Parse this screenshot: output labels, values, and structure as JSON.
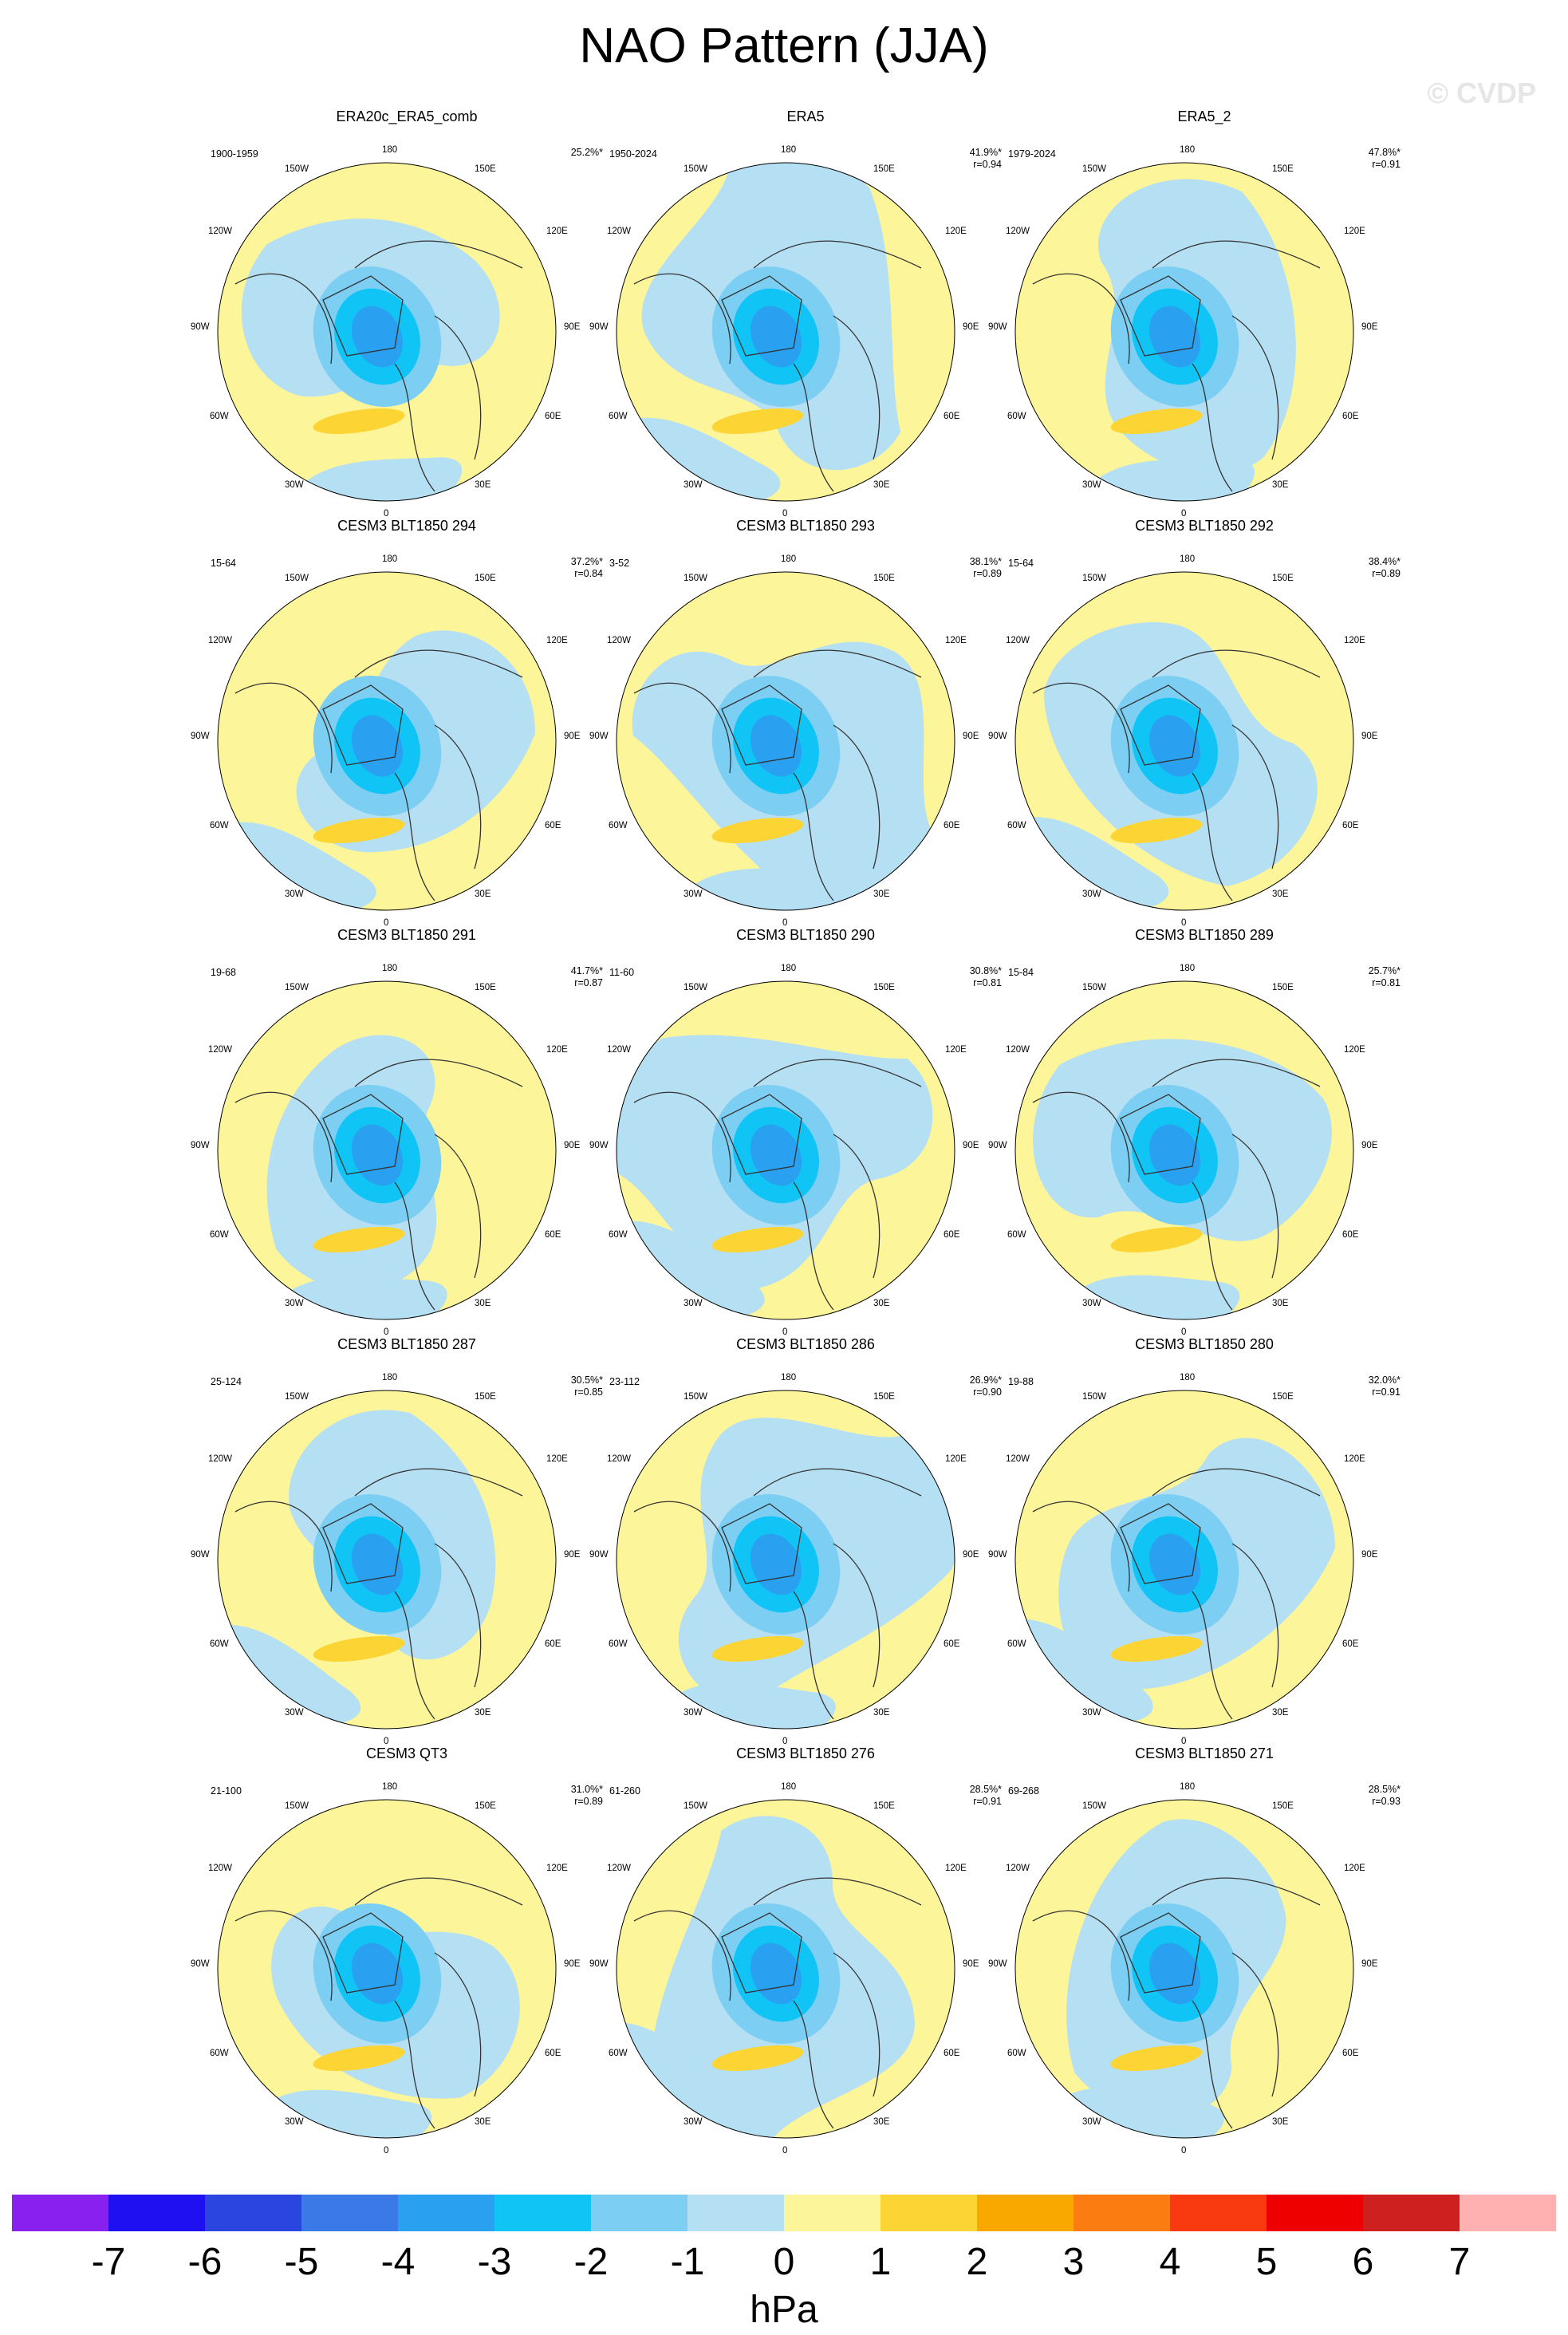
{
  "title": "NAO Pattern (JJA)",
  "watermark": "© CVDP",
  "unit": "hPa",
  "lon_labels": {
    "top": "180",
    "150W": "150W",
    "150E": "150E",
    "120W": "120W",
    "120E": "120E",
    "90W": "90W",
    "90E": "90E",
    "60W": "60W",
    "60E": "60E",
    "30W": "30W",
    "30E": "30E",
    "bottom": "0"
  },
  "colorbar": {
    "colors": [
      "#8a20f0",
      "#1e10f0",
      "#2a45e0",
      "#3a7ae8",
      "#2aa0f0",
      "#10c4f6",
      "#7ccef2",
      "#b5dff3",
      "#fdf59a",
      "#fcd535",
      "#f9a800",
      "#fb7c10",
      "#f93a10",
      "#ee0000",
      "#cf2020",
      "#ffb0b0"
    ],
    "ticks": [
      "-7",
      "-6",
      "-5",
      "-4",
      "-3",
      "-2",
      "-1",
      "0",
      "1",
      "2",
      "3",
      "4",
      "5",
      "6",
      "7"
    ]
  },
  "panels": [
    {
      "name": "ERA20c_ERA5_comb",
      "years": "1900-1959",
      "pct": "25.2%*",
      "r": ""
    },
    {
      "name": "ERA5",
      "years": "1950-2024",
      "pct": "41.9%*",
      "r": "r=0.94"
    },
    {
      "name": "ERA5_2",
      "years": "1979-2024",
      "pct": "47.8%*",
      "r": "r=0.91"
    },
    {
      "name": "CESM3 BLT1850 294",
      "years": "15-64",
      "pct": "37.2%*",
      "r": "r=0.84"
    },
    {
      "name": "CESM3 BLT1850 293",
      "years": "3-52",
      "pct": "38.1%*",
      "r": "r=0.89"
    },
    {
      "name": "CESM3 BLT1850 292",
      "years": "15-64",
      "pct": "38.4%*",
      "r": "r=0.89"
    },
    {
      "name": "CESM3 BLT1850 291",
      "years": "19-68",
      "pct": "41.7%*",
      "r": "r=0.87"
    },
    {
      "name": "CESM3 BLT1850 290",
      "years": "11-60",
      "pct": "30.8%*",
      "r": "r=0.81"
    },
    {
      "name": "CESM3 BLT1850 289",
      "years": "15-84",
      "pct": "25.7%*",
      "r": "r=0.81"
    },
    {
      "name": "CESM3 BLT1850 287",
      "years": "25-124",
      "pct": "30.5%*",
      "r": "r=0.85"
    },
    {
      "name": "CESM3 BLT1850 286",
      "years": "23-112",
      "pct": "26.9%*",
      "r": "r=0.90"
    },
    {
      "name": "CESM3 BLT1850 280",
      "years": "19-88",
      "pct": "32.0%*",
      "r": "r=0.91"
    },
    {
      "name": "CESM3 QT3",
      "years": "21-100",
      "pct": "31.0%*",
      "r": "r=0.89"
    },
    {
      "name": "CESM3 BLT1850 276",
      "years": "61-260",
      "pct": "28.5%*",
      "r": "r=0.91"
    },
    {
      "name": "CESM3 BLT1850 271",
      "years": "69-268",
      "pct": "28.5%*",
      "r": "r=0.93"
    }
  ]
}
